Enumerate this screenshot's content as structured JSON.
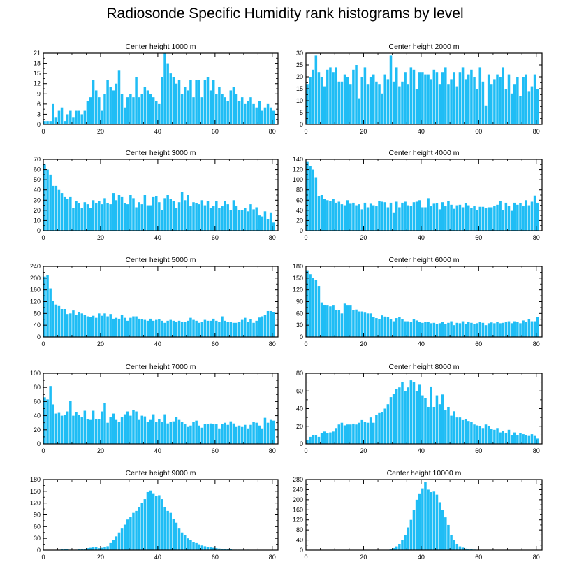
{
  "title": "Radiosonde Specific Humidity rank histograms by level",
  "bar_color": "#1fbdf5",
  "chart_data": [
    {
      "type": "bar",
      "title": "Center height 1000 m",
      "xlim": [
        0,
        82
      ],
      "ylim": [
        0,
        21
      ],
      "xticks": [
        0,
        20,
        40,
        60,
        80
      ],
      "yticks": [
        0,
        3,
        6,
        9,
        12,
        15,
        18,
        21
      ],
      "values": [
        1,
        1,
        1,
        6,
        2,
        4,
        5,
        1,
        3,
        4,
        2,
        4,
        4,
        3,
        4,
        7,
        8,
        13,
        10,
        8,
        4,
        9,
        13,
        11,
        10,
        12,
        16,
        9,
        5,
        8,
        9,
        8,
        14,
        8,
        9,
        11,
        10,
        9,
        8,
        7,
        6,
        14,
        21,
        18,
        15,
        14,
        12,
        13,
        9,
        11,
        10,
        13,
        8,
        13,
        13,
        8,
        13,
        14,
        10,
        13,
        9,
        11,
        9,
        8,
        7,
        10,
        11,
        9,
        7,
        8,
        6,
        7,
        8,
        6,
        5,
        7,
        4,
        5,
        6,
        5,
        4
      ]
    },
    {
      "type": "bar",
      "title": "Center height 2000 m",
      "xlim": [
        0,
        82
      ],
      "ylim": [
        0,
        30
      ],
      "xticks": [
        0,
        20,
        40,
        60,
        80
      ],
      "yticks": [
        0,
        5,
        10,
        15,
        20,
        25,
        30
      ],
      "values": [
        17,
        20,
        23,
        29,
        22,
        20,
        16,
        23,
        24,
        22,
        24,
        18,
        18,
        21,
        20,
        17,
        23,
        25,
        11,
        20,
        24,
        17,
        20,
        21,
        18,
        17,
        13,
        21,
        19,
        29,
        18,
        24,
        16,
        18,
        22,
        17,
        24,
        23,
        15,
        22,
        22,
        21,
        21,
        19,
        23,
        22,
        17,
        22,
        24,
        17,
        19,
        22,
        16,
        22,
        24,
        19,
        21,
        23,
        20,
        15,
        24,
        18,
        8,
        21,
        17,
        19,
        21,
        20,
        24,
        15,
        21,
        13,
        17,
        20,
        12,
        20,
        21,
        14,
        16,
        21,
        15
      ]
    },
    {
      "type": "bar",
      "title": "Center height 3000 m",
      "xlim": [
        0,
        82
      ],
      "ylim": [
        0,
        70
      ],
      "xticks": [
        0,
        20,
        40,
        60,
        80
      ],
      "yticks": [
        0,
        10,
        20,
        30,
        40,
        50,
        60,
        70
      ],
      "values": [
        65,
        60,
        55,
        44,
        44,
        40,
        37,
        33,
        31,
        33,
        22,
        29,
        27,
        22,
        28,
        26,
        22,
        30,
        27,
        29,
        26,
        32,
        27,
        26,
        37,
        30,
        35,
        33,
        27,
        26,
        35,
        32,
        23,
        28,
        26,
        35,
        25,
        25,
        33,
        34,
        28,
        20,
        32,
        35,
        31,
        29,
        22,
        28,
        38,
        30,
        35,
        24,
        28,
        27,
        26,
        30,
        25,
        29,
        22,
        24,
        29,
        22,
        24,
        29,
        26,
        20,
        30,
        24,
        20,
        20,
        22,
        19,
        26,
        21,
        23,
        15,
        14,
        19,
        11,
        18,
        8
      ]
    },
    {
      "type": "bar",
      "title": "Center height 4000 m",
      "xlim": [
        0,
        82
      ],
      "ylim": [
        0,
        140
      ],
      "xticks": [
        0,
        20,
        40,
        60,
        80
      ],
      "yticks": [
        0,
        20,
        40,
        60,
        80,
        100,
        120,
        140
      ],
      "values": [
        135,
        127,
        120,
        105,
        68,
        70,
        63,
        60,
        58,
        62,
        55,
        57,
        52,
        50,
        60,
        53,
        55,
        50,
        52,
        42,
        55,
        46,
        53,
        50,
        48,
        58,
        57,
        56,
        46,
        55,
        36,
        57,
        46,
        55,
        57,
        50,
        49,
        56,
        57,
        60,
        46,
        46,
        64,
        48,
        53,
        54,
        42,
        56,
        48,
        58,
        51,
        43,
        50,
        51,
        46,
        54,
        50,
        45,
        48,
        41,
        47,
        47,
        45,
        46,
        46,
        48,
        51,
        59,
        40,
        55,
        49,
        39,
        55,
        51,
        54,
        48,
        60,
        50,
        57,
        69,
        55
      ]
    },
    {
      "type": "bar",
      "title": "Center height 5000 m",
      "xlim": [
        0,
        82
      ],
      "ylim": [
        0,
        240
      ],
      "xticks": [
        0,
        20,
        40,
        60,
        80
      ],
      "yticks": [
        0,
        40,
        80,
        120,
        160,
        200,
        240
      ],
      "values": [
        205,
        210,
        165,
        123,
        110,
        105,
        95,
        95,
        78,
        80,
        90,
        75,
        85,
        80,
        75,
        70,
        68,
        72,
        65,
        80,
        72,
        80,
        70,
        78,
        62,
        65,
        62,
        75,
        65,
        55,
        65,
        70,
        70,
        62,
        60,
        58,
        55,
        62,
        55,
        58,
        60,
        55,
        48,
        55,
        58,
        55,
        50,
        55,
        50,
        52,
        55,
        65,
        58,
        55,
        48,
        52,
        58,
        55,
        55,
        62,
        55,
        52,
        70,
        55,
        50,
        52,
        48,
        48,
        50,
        58,
        65,
        50,
        60,
        48,
        55,
        66,
        70,
        75,
        88,
        88,
        85
      ]
    },
    {
      "type": "bar",
      "title": "Center height 6000 m",
      "xlim": [
        0,
        82
      ],
      "ylim": [
        0,
        180
      ],
      "xticks": [
        0,
        20,
        40,
        60,
        80
      ],
      "yticks": [
        0,
        30,
        60,
        90,
        120,
        150,
        180
      ],
      "values": [
        170,
        160,
        150,
        145,
        130,
        88,
        82,
        80,
        78,
        80,
        68,
        68,
        60,
        85,
        80,
        80,
        68,
        70,
        65,
        65,
        62,
        60,
        60,
        50,
        48,
        45,
        55,
        52,
        50,
        45,
        40,
        48,
        50,
        45,
        40,
        40,
        38,
        45,
        42,
        38,
        36,
        38,
        38,
        35,
        36,
        33,
        35,
        38,
        33,
        36,
        40,
        30,
        36,
        35,
        40,
        33,
        38,
        36,
        33,
        35,
        38,
        36,
        30,
        35,
        37,
        35,
        38,
        35,
        36,
        38,
        40,
        35,
        40,
        38,
        35,
        42,
        38,
        46,
        40,
        40,
        50
      ]
    },
    {
      "type": "bar",
      "title": "Center height 7000 m",
      "xlim": [
        0,
        82
      ],
      "ylim": [
        0,
        100
      ],
      "xticks": [
        0,
        20,
        40,
        60,
        80
      ],
      "yticks": [
        0,
        20,
        40,
        60,
        80,
        100
      ],
      "values": [
        66,
        63,
        82,
        56,
        43,
        44,
        40,
        41,
        46,
        61,
        40,
        45,
        41,
        38,
        47,
        35,
        34,
        47,
        35,
        35,
        46,
        58,
        30,
        38,
        43,
        34,
        31,
        38,
        42,
        46,
        40,
        48,
        46,
        34,
        40,
        39,
        31,
        34,
        42,
        31,
        35,
        31,
        42,
        29,
        31,
        32,
        38,
        34,
        31,
        28,
        24,
        26,
        31,
        33,
        26,
        23,
        28,
        28,
        29,
        28,
        28,
        22,
        28,
        30,
        27,
        32,
        29,
        24,
        26,
        24,
        27,
        22,
        27,
        31,
        30,
        26,
        22,
        37,
        30,
        34,
        33
      ]
    },
    {
      "type": "bar",
      "title": "Center height 8000 m",
      "xlim": [
        0,
        82
      ],
      "ylim": [
        0,
        80
      ],
      "xticks": [
        0,
        20,
        40,
        60,
        80
      ],
      "yticks": [
        0,
        20,
        40,
        60,
        80
      ],
      "values": [
        4,
        8,
        10,
        10,
        8,
        12,
        14,
        12,
        13,
        14,
        18,
        22,
        24,
        21,
        22,
        22,
        23,
        22,
        24,
        27,
        25,
        24,
        30,
        24,
        33,
        35,
        36,
        40,
        45,
        53,
        57,
        62,
        64,
        70,
        60,
        64,
        72,
        70,
        60,
        67,
        55,
        52,
        42,
        65,
        42,
        55,
        45,
        56,
        38,
        42,
        32,
        37,
        30,
        30,
        27,
        28,
        26,
        25,
        22,
        21,
        20,
        18,
        22,
        20,
        17,
        16,
        18,
        13,
        15,
        12,
        16,
        10,
        13,
        10,
        12,
        11,
        10,
        9,
        11,
        9,
        6
      ]
    },
    {
      "type": "bar",
      "title": "Center height 9000 m",
      "xlim": [
        0,
        82
      ],
      "ylim": [
        0,
        180
      ],
      "xticks": [
        0,
        20,
        40,
        60,
        80
      ],
      "yticks": [
        0,
        30,
        60,
        90,
        120,
        150,
        180
      ],
      "values": [
        0,
        0,
        0,
        0,
        0,
        0,
        2,
        2,
        2,
        1,
        0,
        1,
        2,
        2,
        3,
        5,
        6,
        7,
        8,
        5,
        6,
        8,
        10,
        18,
        25,
        35,
        45,
        55,
        65,
        78,
        85,
        95,
        100,
        110,
        120,
        130,
        148,
        152,
        145,
        138,
        140,
        130,
        110,
        100,
        95,
        80,
        70,
        55,
        45,
        38,
        30,
        25,
        20,
        18,
        15,
        12,
        10,
        8,
        7,
        6,
        5,
        4,
        3,
        3,
        2,
        2,
        1,
        1,
        1,
        1,
        0,
        1,
        0,
        0,
        0,
        0,
        0,
        0,
        0,
        0,
        0
      ]
    },
    {
      "type": "bar",
      "title": "Center height 10000 m",
      "xlim": [
        0,
        82
      ],
      "ylim": [
        0,
        280
      ],
      "xticks": [
        0,
        20,
        40,
        60,
        80
      ],
      "yticks": [
        0,
        40,
        80,
        120,
        160,
        200,
        240,
        280
      ],
      "values": [
        0,
        0,
        0,
        0,
        0,
        0,
        0,
        0,
        0,
        0,
        0,
        0,
        0,
        0,
        0,
        0,
        0,
        0,
        0,
        0,
        0,
        0,
        0,
        0,
        0,
        0,
        0,
        0,
        0,
        3,
        8,
        15,
        25,
        40,
        60,
        90,
        120,
        160,
        200,
        225,
        245,
        270,
        240,
        230,
        232,
        220,
        190,
        160,
        130,
        100,
        60,
        40,
        25,
        15,
        10,
        6,
        4,
        3,
        2,
        1,
        0,
        0,
        0,
        0,
        0,
        0,
        0,
        0,
        0,
        0,
        0,
        0,
        0,
        0,
        0,
        0,
        0,
        0,
        0,
        0,
        0
      ]
    }
  ]
}
